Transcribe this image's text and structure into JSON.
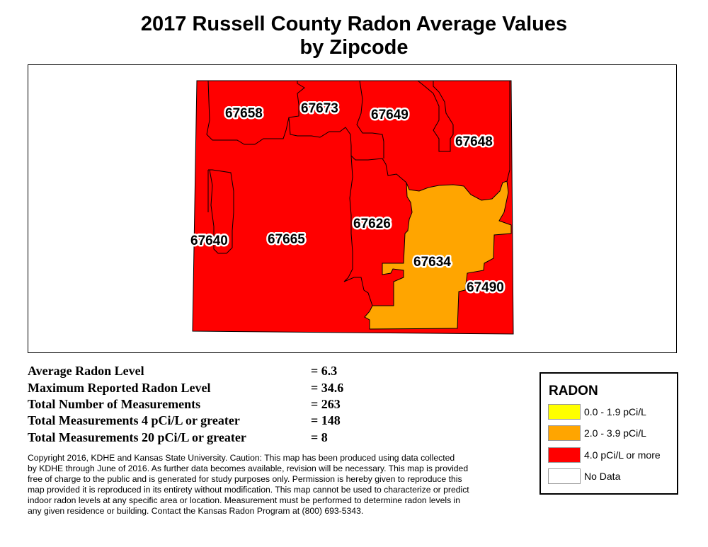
{
  "title_line1": "2017 Russell County Radon Average Values",
  "title_line2": "by Zipcode",
  "colors": {
    "low": "#ffff00",
    "moderate": "#ffa500",
    "high": "#ff0000",
    "nodata": "#ffffff",
    "boundary": "#000000"
  },
  "zipcodes": [
    {
      "zip": "67658",
      "category": "high"
    },
    {
      "zip": "67673",
      "category": "high"
    },
    {
      "zip": "67649",
      "category": "high"
    },
    {
      "zip": "67648",
      "category": "high"
    },
    {
      "zip": "67626",
      "category": "high"
    },
    {
      "zip": "67640",
      "category": "high"
    },
    {
      "zip": "67665",
      "category": "high"
    },
    {
      "zip": "67634",
      "category": "moderate"
    },
    {
      "zip": "67490",
      "category": "high"
    }
  ],
  "stats": [
    {
      "label": "Average Radon Level",
      "value": "= 6.3"
    },
    {
      "label": "Maximum Reported Radon Level",
      "value": "= 34.6"
    },
    {
      "label": "Total Number of Measurements",
      "value": "= 263"
    },
    {
      "label": "Total Measurements 4 pCi/L or greater",
      "value": "= 148"
    },
    {
      "label": "Total Measurements 20 pCi/L or greater",
      "value": "= 8"
    }
  ],
  "copyright_lines": [
    "Copyright 2016, KDHE and Kansas State University.  Caution: This map has been produced using data collected",
    "by KDHE through June of 2016.  As further data becomes available, revision will be necessary. This map is provided",
    "free of charge to the public and is generated for study purposes only.  Permission is hereby given to reproduce this",
    "map provided it is reproduced in its entirety without modification. This map cannot be used to characterize or predict",
    "indoor radon levels at any specific area or location. Measurement must be performed to determine radon levels in",
    "any given residence or building. Contact the Kansas Radon Program at (800) 693-5343."
  ],
  "legend": {
    "title": "RADON",
    "items": [
      {
        "label": "0.0 - 1.9 pCi/L",
        "color": "#ffff00"
      },
      {
        "label": "2.0 - 3.9 pCi/L",
        "color": "#ffa500"
      },
      {
        "label": "4.0 pCi/L or more",
        "color": "#ff0000"
      },
      {
        "label": "No Data",
        "color": "#ffffff"
      }
    ]
  }
}
